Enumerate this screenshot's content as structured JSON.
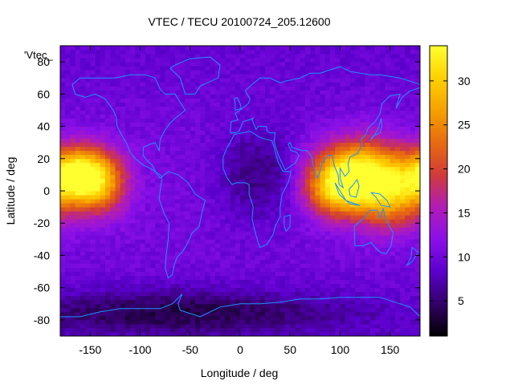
{
  "chart_data": {
    "type": "heatmap",
    "title": "VTEC / TECU 20100724_205.12600",
    "xlabel": "Longitude / deg",
    "ylabel": "Latitude / deg",
    "series_label": "'Vtec_",
    "xlim": [
      -180,
      180
    ],
    "ylim": [
      -90,
      90
    ],
    "xticks": [
      -150,
      -100,
      -50,
      0,
      50,
      100,
      150
    ],
    "yticks": [
      -80,
      -60,
      -40,
      -20,
      0,
      20,
      40,
      60,
      80
    ],
    "colorbar": {
      "range": [
        1,
        34
      ],
      "ticks": [
        5,
        10,
        15,
        20,
        25,
        30
      ],
      "colormap": [
        "#000000",
        "#330066",
        "#5a00cc",
        "#8a10e8",
        "#b01cb8",
        "#d03a3a",
        "#e86a10",
        "#f5a000",
        "#ffd000",
        "#ffff30"
      ]
    },
    "grid_resolution": {
      "lon_step": 5,
      "lat_step": 2.5
    },
    "anomaly_peaks": [
      {
        "lon": -165,
        "lat": 10,
        "vtec": 30,
        "spread_lon": 22,
        "spread_lat": 12
      },
      {
        "lon": -140,
        "lat": 5,
        "vtec": 22,
        "spread_lon": 20,
        "spread_lat": 14
      },
      {
        "lon": 120,
        "lat": 12,
        "vtec": 30,
        "spread_lon": 32,
        "spread_lat": 14
      },
      {
        "lon": 95,
        "lat": 0,
        "vtec": 22,
        "spread_lon": 22,
        "spread_lat": 12
      },
      {
        "lon": 150,
        "lat": -5,
        "vtec": 22,
        "spread_lon": 25,
        "spread_lat": 14
      }
    ],
    "background_vtec": 9,
    "low_regions": [
      {
        "lon": 20,
        "lat": 10,
        "vtec": 4,
        "spread_lon": 30,
        "spread_lat": 20
      },
      {
        "lon": -60,
        "lat": -75,
        "vtec": 3,
        "spread_lon": 120,
        "spread_lat": 10
      }
    ],
    "coastline_color": "#1e90ff"
  }
}
